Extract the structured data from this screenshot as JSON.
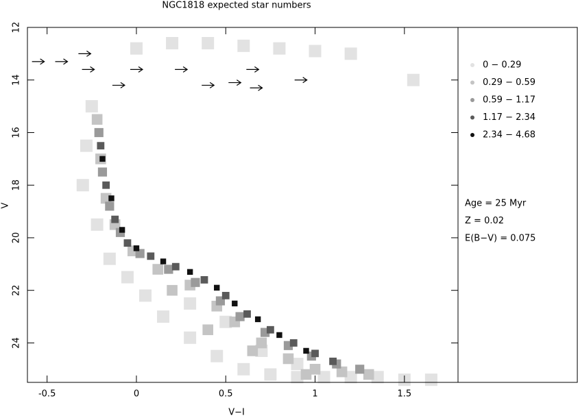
{
  "chart_data": {
    "type": "hess",
    "title": "NGC1818 expected star numbers",
    "xlabel": "V−I",
    "ylabel": "V",
    "xlim": [
      -0.61,
      1.8
    ],
    "ylim": [
      25.5,
      12
    ],
    "xticks": [
      -0.5,
      0,
      0.5,
      1,
      1.5
    ],
    "yticks": [
      12,
      14,
      16,
      18,
      20,
      22,
      24
    ],
    "series": [
      {
        "name": "0 − 0.29",
        "color": "#e2e2e2",
        "x": [
          -0.25,
          -0.28,
          -0.3,
          -0.22,
          -0.15,
          -0.05,
          0.05,
          0.15,
          0.3,
          0.45,
          0.6,
          0.75,
          0.9,
          1.05,
          1.2,
          1.35,
          1.5,
          1.65,
          0.0,
          0.2,
          0.4,
          0.6,
          0.8,
          1.0,
          1.2,
          1.55,
          0.3,
          0.5,
          0.7,
          0.9
        ],
        "y": [
          15,
          16.5,
          18,
          19.5,
          20.8,
          21.5,
          22.2,
          23,
          23.8,
          24.5,
          25,
          25.2,
          25.3,
          25.3,
          25.3,
          25.3,
          25.4,
          25.4,
          12.8,
          12.6,
          12.6,
          12.7,
          12.8,
          12.9,
          13.0,
          14.0,
          22.5,
          23.2,
          24.3,
          24.8
        ]
      },
      {
        "name": "0.29 − 0.59",
        "color": "#c4c4c4",
        "x": [
          -0.22,
          -0.2,
          -0.17,
          -0.12,
          -0.02,
          0.12,
          0.3,
          0.45,
          0.55,
          0.7,
          0.85,
          1.0,
          1.15,
          1.3,
          0.2,
          0.4,
          0.65,
          0.95
        ],
        "y": [
          15.5,
          17,
          18.5,
          19.5,
          20.5,
          21.2,
          21.8,
          22.6,
          23.2,
          24,
          24.6,
          25,
          25.1,
          25.2,
          22,
          23.5,
          24.3,
          25.2
        ]
      },
      {
        "name": "0.59 − 1.17",
        "color": "#9a9a9a",
        "x": [
          -0.21,
          -0.19,
          -0.15,
          -0.09,
          0.02,
          0.18,
          0.33,
          0.47,
          0.58,
          0.72,
          0.85,
          0.98,
          1.12,
          1.25
        ],
        "y": [
          16,
          17.5,
          18.8,
          19.8,
          20.6,
          21.2,
          21.7,
          22.4,
          23,
          23.6,
          24.1,
          24.5,
          24.8,
          25
        ]
      },
      {
        "name": "1.17 − 2.34",
        "color": "#5a5a5a",
        "x": [
          -0.2,
          -0.17,
          -0.12,
          -0.05,
          0.08,
          0.22,
          0.38,
          0.5,
          0.62,
          0.75,
          0.88,
          1.0,
          1.1
        ],
        "y": [
          16.5,
          18,
          19.3,
          20.2,
          20.7,
          21.1,
          21.6,
          22.2,
          22.9,
          23.5,
          24,
          24.4,
          24.7
        ]
      },
      {
        "name": "2.34 − 4.68",
        "color": "#111111",
        "x": [
          -0.19,
          -0.14,
          -0.08,
          0.0,
          0.15,
          0.3,
          0.45,
          0.55,
          0.68,
          0.8,
          0.95
        ],
        "y": [
          17,
          18.5,
          19.7,
          20.4,
          20.9,
          21.3,
          21.9,
          22.5,
          23.1,
          23.7,
          24.3
        ]
      }
    ],
    "markers": {
      "color": "#000000",
      "x": [
        -0.55,
        -0.42,
        -0.29,
        -0.27,
        -0.1,
        0.0,
        0.25,
        0.4,
        0.55,
        0.65,
        0.67,
        0.92
      ],
      "y": [
        13.3,
        13.3,
        13.0,
        13.6,
        14.2,
        13.6,
        13.6,
        14.2,
        14.1,
        13.6,
        14.3,
        14.0
      ]
    },
    "annotations": [
      "Age = 25 Myr",
      "Z = 0.02",
      "E(B−V) = 0.075"
    ]
  }
}
